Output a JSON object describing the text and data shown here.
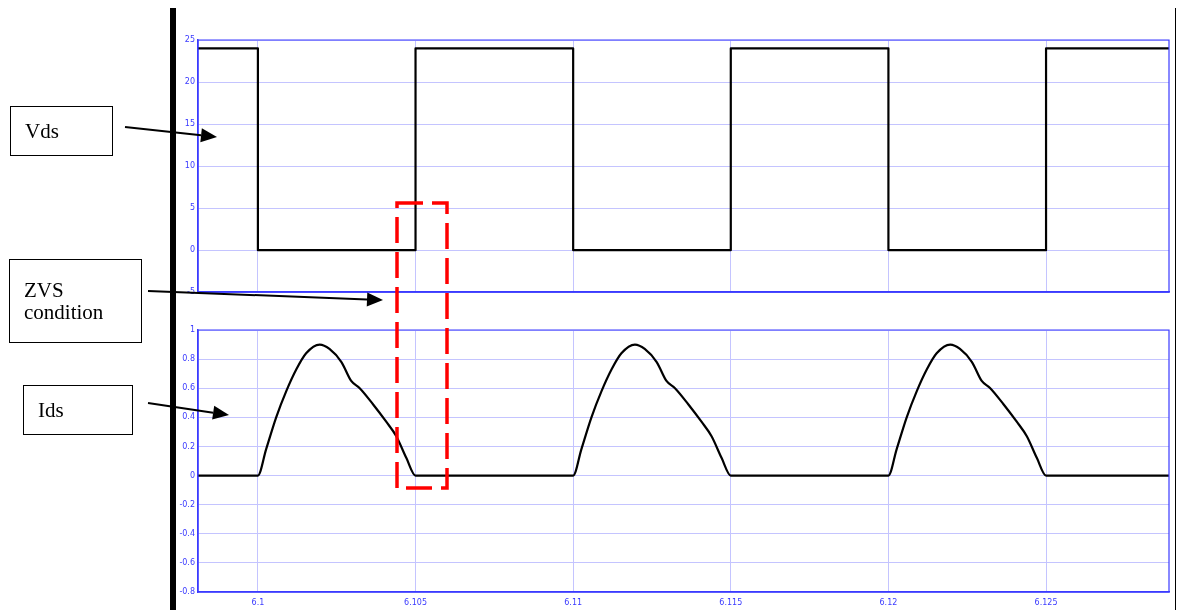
{
  "chart_data": [
    {
      "type": "step",
      "annotations": [
        "Vds",
        "ZVS condition"
      ],
      "x": [
        6.0981,
        6.1,
        6.105,
        6.11,
        6.115,
        6.12,
        6.125,
        6.1289
      ],
      "values": [
        24,
        0,
        24,
        0,
        24,
        0,
        24,
        24
      ],
      "color": "#000000",
      "xlim": [
        6.0981,
        6.1289
      ],
      "xticks": [
        6.1,
        6.105,
        6.11,
        6.115,
        6.12,
        6.125
      ],
      "ylim": [
        -5,
        25
      ],
      "yticks": [
        -5,
        0,
        5,
        10,
        15,
        20,
        25
      ],
      "grid": true,
      "tick_labels": "y"
    },
    {
      "type": "line",
      "annotations": [
        "Ids"
      ],
      "x": [
        6.0981,
        6.1,
        6.10026,
        6.10058,
        6.1009,
        6.10122,
        6.10153,
        6.10196,
        6.10227,
        6.10265,
        6.10296,
        6.10323,
        6.10365,
        6.10407,
        6.10439,
        6.10471,
        6.105,
        6.11,
        6.11026,
        6.11058,
        6.1109,
        6.11122,
        6.11153,
        6.11196,
        6.11227,
        6.11265,
        6.11296,
        6.11323,
        6.11365,
        6.11407,
        6.11439,
        6.11471,
        6.115,
        6.12,
        6.12026,
        6.12058,
        6.1209,
        6.12122,
        6.12153,
        6.12196,
        6.12227,
        6.12265,
        6.12296,
        6.12323,
        6.12365,
        6.12407,
        6.12439,
        6.12471,
        6.125,
        6.1289
      ],
      "values": [
        0,
        0,
        0.18,
        0.4,
        0.58,
        0.73,
        0.84,
        0.9,
        0.87,
        0.78,
        0.65,
        0.6,
        0.49,
        0.37,
        0.27,
        0.12,
        0,
        0,
        0.18,
        0.4,
        0.58,
        0.73,
        0.84,
        0.9,
        0.87,
        0.78,
        0.65,
        0.6,
        0.49,
        0.37,
        0.27,
        0.12,
        0,
        0,
        0.18,
        0.4,
        0.58,
        0.73,
        0.84,
        0.9,
        0.87,
        0.78,
        0.65,
        0.6,
        0.49,
        0.37,
        0.27,
        0.12,
        0,
        0
      ],
      "color": "#000000",
      "xlim": [
        6.0981,
        6.1289
      ],
      "xticks": [
        6.1,
        6.105,
        6.11,
        6.115,
        6.12,
        6.125
      ],
      "ylim": [
        -0.8,
        1
      ],
      "yticks": [
        -0.8,
        -0.6,
        -0.4,
        -0.2,
        0,
        0.2,
        0.4,
        0.6,
        0.8,
        1
      ],
      "grid": true
    }
  ]
}
